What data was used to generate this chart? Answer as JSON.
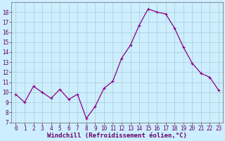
{
  "x": [
    0,
    1,
    2,
    3,
    4,
    5,
    6,
    7,
    8,
    9,
    10,
    11,
    12,
    13,
    14,
    15,
    16,
    17,
    18,
    19,
    20,
    21,
    22,
    23
  ],
  "y": [
    9.8,
    9.0,
    10.6,
    10.0,
    9.4,
    10.3,
    9.3,
    9.8,
    7.4,
    8.6,
    10.4,
    11.1,
    13.4,
    14.7,
    16.7,
    18.3,
    18.0,
    17.8,
    16.4,
    14.5,
    12.9,
    11.9,
    11.5,
    10.2
  ],
  "line_color": "#880088",
  "marker": "+",
  "marker_size": 3,
  "marker_linewidth": 0.8,
  "bg_color": "#cceeff",
  "grid_color": "#aacccc",
  "xlabel": "Windchill (Refroidissement éolien,°C)",
  "ylim": [
    7,
    19
  ],
  "xlim": [
    -0.5,
    23.5
  ],
  "yticks": [
    7,
    8,
    9,
    10,
    11,
    12,
    13,
    14,
    15,
    16,
    17,
    18
  ],
  "xticks": [
    0,
    1,
    2,
    3,
    4,
    5,
    6,
    7,
    8,
    9,
    10,
    11,
    12,
    13,
    14,
    15,
    16,
    17,
    18,
    19,
    20,
    21,
    22,
    23
  ],
  "tick_fontsize": 5.5,
  "xlabel_fontsize": 6.5,
  "tick_color": "#660066",
  "spine_color": "#666666",
  "linewidth": 0.9
}
